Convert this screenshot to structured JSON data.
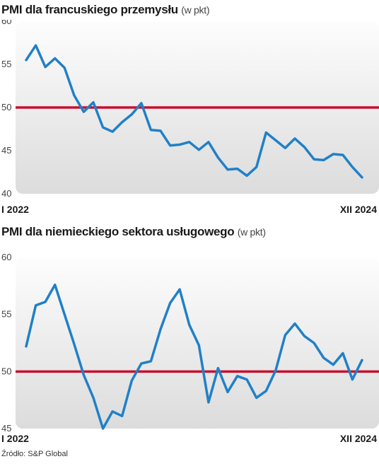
{
  "source": "Źródło: S&P Global",
  "colors": {
    "line": "#2080c8",
    "reference": "#c8102e",
    "panel_top": "#fdfdfd",
    "panel_bottom": "#dcdcdc"
  },
  "chart_data": [
    {
      "type": "line",
      "title": "PMI dla francuskiego przemysłu",
      "unit": "(w pkt)",
      "ylim": [
        40,
        60
      ],
      "yticks": [
        40,
        45,
        50,
        55,
        60
      ],
      "x_start_label": "I 2022",
      "x_end_label": "XII 2024",
      "reference_line": 50,
      "grid": false,
      "series": [
        {
          "values": [
            55.5,
            57.2,
            54.7,
            55.7,
            54.6,
            51.4,
            49.5,
            50.6,
            47.7,
            47.2,
            48.3,
            49.2,
            50.5,
            47.4,
            47.3,
            45.6,
            45.7,
            46.0,
            45.1,
            46.0,
            44.2,
            42.8,
            42.9,
            42.1,
            43.1,
            47.1,
            46.2,
            45.3,
            46.4,
            45.4,
            44.0,
            43.9,
            44.6,
            44.5,
            43.1,
            41.9
          ]
        }
      ]
    },
    {
      "type": "line",
      "title": "PMI dla niemieckiego sektora usługowego",
      "unit": "(w pkt)",
      "ylim": [
        45,
        60
      ],
      "yticks": [
        45,
        50,
        55,
        60
      ],
      "x_start_label": "I 2022",
      "x_end_label": "XII 2024",
      "reference_line": 50,
      "grid": false,
      "series": [
        {
          "values": [
            52.2,
            55.8,
            56.1,
            57.6,
            55.0,
            52.4,
            49.7,
            47.7,
            45.0,
            46.5,
            46.1,
            49.2,
            50.7,
            50.9,
            53.7,
            56.0,
            57.2,
            54.1,
            52.3,
            47.3,
            50.3,
            48.2,
            49.6,
            49.3,
            47.7,
            48.3,
            50.1,
            53.2,
            54.2,
            53.1,
            52.5,
            51.2,
            50.6,
            51.6,
            49.3,
            51.0
          ]
        }
      ]
    }
  ]
}
